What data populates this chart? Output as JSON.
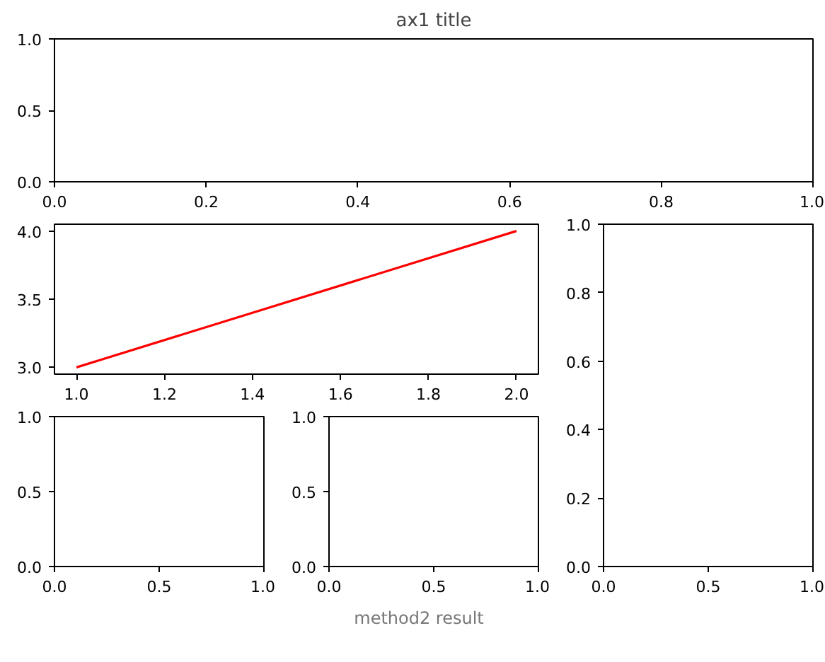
{
  "chart_data": [
    {
      "type": "line",
      "title": "ax1 title",
      "xlim": [
        0,
        1
      ],
      "ylim": [
        0,
        1
      ],
      "xticks": [
        {
          "value": 0,
          "label": "0.0"
        },
        {
          "value": 0.2,
          "label": "0.2"
        },
        {
          "value": 0.4,
          "label": "0.4"
        },
        {
          "value": 0.6,
          "label": "0.6"
        },
        {
          "value": 0.8,
          "label": "0.8"
        },
        {
          "value": 1,
          "label": "1.0"
        }
      ],
      "yticks": [
        {
          "value": 0,
          "label": "0.0"
        },
        {
          "value": 0.5,
          "label": "0.5"
        },
        {
          "value": 1,
          "label": "1.0"
        }
      ],
      "grid": false
    },
    {
      "type": "line",
      "x": [
        1,
        2
      ],
      "series": [
        {
          "color": "#ff0000",
          "values": [
            3,
            4
          ]
        }
      ],
      "xlim": [
        0.95,
        2.05
      ],
      "ylim": [
        2.95,
        4.05
      ],
      "xticks": [
        {
          "value": 1,
          "label": "1.0"
        },
        {
          "value": 1.2,
          "label": "1.2"
        },
        {
          "value": 1.4,
          "label": "1.4"
        },
        {
          "value": 1.6,
          "label": "1.6"
        },
        {
          "value": 1.8,
          "label": "1.8"
        },
        {
          "value": 2,
          "label": "2.0"
        }
      ],
      "yticks": [
        {
          "value": 3,
          "label": "3.0"
        },
        {
          "value": 3.5,
          "label": "3.5"
        },
        {
          "value": 4,
          "label": "4.0"
        }
      ],
      "grid": false
    },
    {
      "type": "line",
      "xlim": [
        0,
        1
      ],
      "ylim": [
        0,
        1
      ],
      "xticks": [
        {
          "value": 0,
          "label": "0.0"
        },
        {
          "value": 0.5,
          "label": "0.5"
        },
        {
          "value": 1,
          "label": "1.0"
        }
      ],
      "yticks": [
        {
          "value": 0,
          "label": "0.0"
        },
        {
          "value": 0.5,
          "label": "0.5"
        },
        {
          "value": 1,
          "label": "1.0"
        }
      ],
      "grid": false
    },
    {
      "type": "line",
      "xlim": [
        0,
        1
      ],
      "ylim": [
        0,
        1
      ],
      "xticks": [
        {
          "value": 0,
          "label": "0.0"
        },
        {
          "value": 0.5,
          "label": "0.5"
        },
        {
          "value": 1,
          "label": "1.0"
        }
      ],
      "yticks": [
        {
          "value": 0,
          "label": "0.0"
        },
        {
          "value": 0.5,
          "label": "0.5"
        },
        {
          "value": 1,
          "label": "1.0"
        }
      ],
      "grid": false,
      "annotations": [
        "method2 result"
      ]
    },
    {
      "type": "line",
      "xlim": [
        0,
        1
      ],
      "ylim": [
        0,
        1
      ],
      "xticks": [
        {
          "value": 0,
          "label": "0.0"
        },
        {
          "value": 0.5,
          "label": "0.5"
        },
        {
          "value": 1,
          "label": "1.0"
        }
      ],
      "yticks": [
        {
          "value": 0,
          "label": "0.0"
        },
        {
          "value": 0.2,
          "label": "0.2"
        },
        {
          "value": 0.4,
          "label": "0.4"
        },
        {
          "value": 0.6,
          "label": "0.6"
        },
        {
          "value": 0.8,
          "label": "0.8"
        },
        {
          "value": 1,
          "label": "1.0"
        }
      ],
      "grid": false
    }
  ]
}
